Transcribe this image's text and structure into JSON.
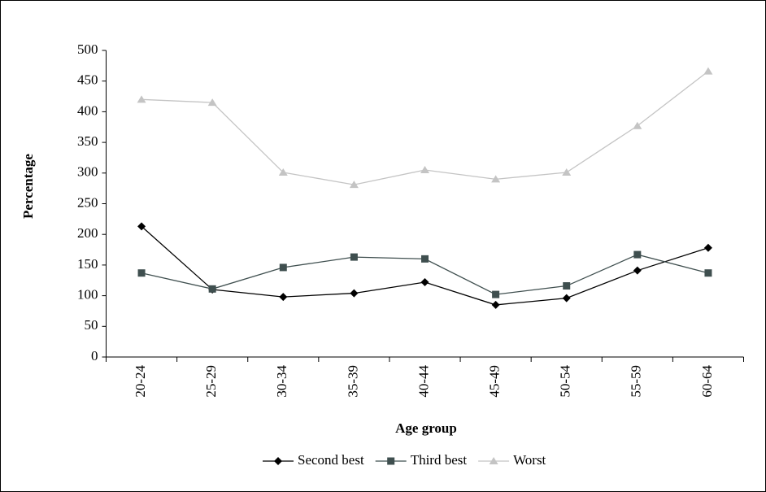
{
  "chart_data": {
    "type": "line",
    "x_label": "Age group",
    "y_label": "Percentage",
    "categories": [
      "20-24",
      "25-29",
      "30-34",
      "35-39",
      "40-44",
      "45-49",
      "50-54",
      "55-59",
      "60-64"
    ],
    "series": [
      {
        "name": "Second best",
        "color": "#000000",
        "marker": "diamond",
        "values": [
          213,
          110,
          98,
          104,
          122,
          85,
          96,
          141,
          178
        ]
      },
      {
        "name": "Third best",
        "color": "#3f4f4f",
        "marker": "square",
        "values": [
          137,
          111,
          146,
          163,
          160,
          102,
          116,
          167,
          137
        ]
      },
      {
        "name": "Worst",
        "color": "#c4c4c4",
        "marker": "triangle",
        "values": [
          420,
          415,
          301,
          281,
          305,
          290,
          301,
          377,
          466
        ]
      }
    ],
    "ylim": [
      0,
      500
    ],
    "yticks": [
      0,
      50,
      100,
      150,
      200,
      250,
      300,
      350,
      400,
      450,
      500
    ],
    "legend": "bottom"
  }
}
